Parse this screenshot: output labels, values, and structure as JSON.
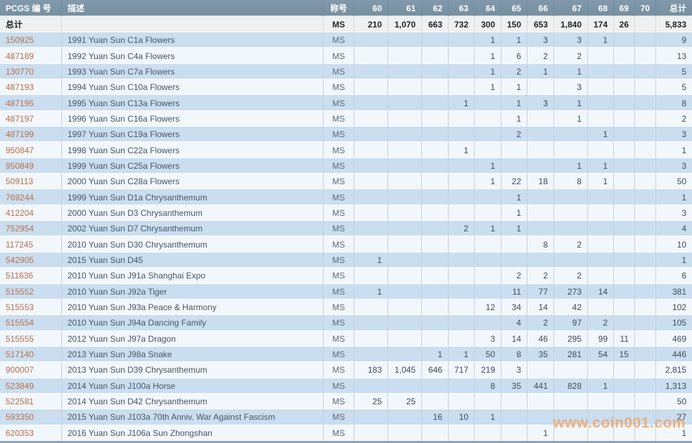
{
  "header": {
    "col_pcgs": "PCGS 编 号",
    "col_desc": "描述",
    "col_designation": "称号",
    "grades": [
      "60",
      "61",
      "62",
      "63",
      "64",
      "65",
      "66",
      "67",
      "68",
      "69",
      "70"
    ],
    "col_total": "总计"
  },
  "totals_row": {
    "label": "总计",
    "desc": "",
    "designation": "MS",
    "values": [
      "210",
      "1,070",
      "663",
      "732",
      "300",
      "150",
      "653",
      "1,840",
      "174",
      "26",
      ""
    ],
    "total": "5,833"
  },
  "rows": [
    {
      "pcgs": "150925",
      "desc": "1991 Yuan Sun C1a Flowers",
      "designation": "MS",
      "values": [
        "",
        "",
        "",
        "",
        "1",
        "1",
        "3",
        "3",
        "1",
        "",
        ""
      ],
      "total": "9"
    },
    {
      "pcgs": "487189",
      "desc": "1992 Yuan Sun C4a Flowers",
      "designation": "MS",
      "values": [
        "",
        "",
        "",
        "",
        "1",
        "6",
        "2",
        "2",
        "",
        "",
        ""
      ],
      "total": "13"
    },
    {
      "pcgs": "130770",
      "desc": "1993 Yuan Sun C7a Flowers",
      "designation": "MS",
      "values": [
        "",
        "",
        "",
        "",
        "1",
        "2",
        "1",
        "1",
        "",
        "",
        ""
      ],
      "total": "5"
    },
    {
      "pcgs": "487193",
      "desc": "1994 Yuan Sun C10a Flowers",
      "designation": "MS",
      "values": [
        "",
        "",
        "",
        "",
        "1",
        "1",
        "",
        "3",
        "",
        "",
        ""
      ],
      "total": "5"
    },
    {
      "pcgs": "487195",
      "desc": "1995 Yuan Sun C13a Flowers",
      "designation": "MS",
      "values": [
        "",
        "",
        "",
        "1",
        "",
        "1",
        "3",
        "1",
        "",
        "",
        ""
      ],
      "total": "8"
    },
    {
      "pcgs": "487197",
      "desc": "1996 Yuan Sun C16a Flowers",
      "designation": "MS",
      "values": [
        "",
        "",
        "",
        "",
        "",
        "1",
        "",
        "1",
        "",
        "",
        ""
      ],
      "total": "2"
    },
    {
      "pcgs": "487199",
      "desc": "1997 Yuan Sun C19a Flowers",
      "designation": "MS",
      "values": [
        "",
        "",
        "",
        "",
        "",
        "2",
        "",
        "",
        "1",
        "",
        ""
      ],
      "total": "3"
    },
    {
      "pcgs": "950847",
      "desc": "1998 Yuan Sun C22a Flowers",
      "designation": "MS",
      "values": [
        "",
        "",
        "",
        "1",
        "",
        "",
        "",
        "",
        "",
        "",
        ""
      ],
      "total": "1"
    },
    {
      "pcgs": "950849",
      "desc": "1999 Yuan Sun C25a Flowers",
      "designation": "MS",
      "values": [
        "",
        "",
        "",
        "",
        "1",
        "",
        "",
        "1",
        "1",
        "",
        ""
      ],
      "total": "3"
    },
    {
      "pcgs": "509113",
      "desc": "2000 Yuan Sun C28a Flowers",
      "designation": "MS",
      "values": [
        "",
        "",
        "",
        "",
        "1",
        "22",
        "18",
        "8",
        "1",
        "",
        ""
      ],
      "total": "50"
    },
    {
      "pcgs": "769244",
      "desc": "1999 Yuan Sun D1a Chrysanthemum",
      "designation": "MS",
      "values": [
        "",
        "",
        "",
        "",
        "",
        "1",
        "",
        "",
        "",
        "",
        ""
      ],
      "total": "1"
    },
    {
      "pcgs": "412204",
      "desc": "2000 Yuan Sun D3 Chrysanthemum",
      "designation": "MS",
      "values": [
        "",
        "",
        "",
        "",
        "",
        "1",
        "",
        "",
        "",
        "",
        ""
      ],
      "total": "3"
    },
    {
      "pcgs": "752954",
      "desc": "2002 Yuan Sun D7 Chrysanthemum",
      "designation": "MS",
      "values": [
        "",
        "",
        "",
        "2",
        "1",
        "1",
        "",
        "",
        "",
        "",
        ""
      ],
      "total": "4"
    },
    {
      "pcgs": "117245",
      "desc": "2010 Yuan Sun D30 Chrysanthemum",
      "designation": "MS",
      "values": [
        "",
        "",
        "",
        "",
        "",
        "",
        "8",
        "2",
        "",
        "",
        ""
      ],
      "total": "10"
    },
    {
      "pcgs": "542905",
      "desc": "2015 Yuan Sun D45",
      "designation": "MS",
      "values": [
        "1",
        "",
        "",
        "",
        "",
        "",
        "",
        "",
        "",
        "",
        ""
      ],
      "total": "1"
    },
    {
      "pcgs": "511636",
      "desc": "2010 Yuan Sun J91a Shanghai Expo",
      "designation": "MS",
      "values": [
        "",
        "",
        "",
        "",
        "",
        "2",
        "2",
        "2",
        "",
        "",
        ""
      ],
      "total": "6"
    },
    {
      "pcgs": "515552",
      "desc": "2010 Yuan Sun J92a Tiger",
      "designation": "MS",
      "values": [
        "1",
        "",
        "",
        "",
        "",
        "11",
        "77",
        "273",
        "14",
        "",
        ""
      ],
      "total": "381"
    },
    {
      "pcgs": "515553",
      "desc": "2010 Yuan Sun J93a Peace & Harmony",
      "designation": "MS",
      "values": [
        "",
        "",
        "",
        "",
        "12",
        "34",
        "14",
        "42",
        "",
        "",
        ""
      ],
      "total": "102"
    },
    {
      "pcgs": "515554",
      "desc": "2010 Yuan Sun J94a Dancing Family",
      "designation": "MS",
      "values": [
        "",
        "",
        "",
        "",
        "",
        "4",
        "2",
        "97",
        "2",
        "",
        ""
      ],
      "total": "105"
    },
    {
      "pcgs": "515555",
      "desc": "2012 Yuan Sun J97a Dragon",
      "designation": "MS",
      "values": [
        "",
        "",
        "",
        "",
        "3",
        "14",
        "46",
        "295",
        "99",
        "11",
        ""
      ],
      "total": "469"
    },
    {
      "pcgs": "517140",
      "desc": "2013 Yuan Sun J98a Snake",
      "designation": "MS",
      "values": [
        "",
        "",
        "1",
        "1",
        "50",
        "8",
        "35",
        "281",
        "54",
        "15",
        ""
      ],
      "total": "446"
    },
    {
      "pcgs": "900007",
      "desc": "2013 Yuan Sun D39 Chrysanthemum",
      "designation": "MS",
      "values": [
        "183",
        "1,045",
        "646",
        "717",
        "219",
        "3",
        "",
        "",
        "",
        "",
        ""
      ],
      "total": "2,815"
    },
    {
      "pcgs": "523849",
      "desc": "2014 Yuan Sun J100a Horse",
      "designation": "MS",
      "values": [
        "",
        "",
        "",
        "",
        "8",
        "35",
        "441",
        "828",
        "1",
        "",
        ""
      ],
      "total": "1,313"
    },
    {
      "pcgs": "522581",
      "desc": "2014 Yuan Sun D42 Chrysanthemum",
      "designation": "MS",
      "values": [
        "25",
        "25",
        "",
        "",
        "",
        "",
        "",
        "",
        "",
        "",
        ""
      ],
      "total": "50"
    },
    {
      "pcgs": "593350",
      "desc": "2015 Yuan Sun J103a 70th Anniv. War Against Fascism",
      "designation": "MS",
      "values": [
        "",
        "",
        "16",
        "10",
        "1",
        "",
        "",
        "",
        "",
        "",
        ""
      ],
      "total": "27"
    },
    {
      "pcgs": "620353",
      "desc": "2016 Yuan Sun J106a Sun Zhongshan",
      "designation": "MS",
      "values": [
        "",
        "",
        "",
        "",
        "",
        "",
        "1",
        "",
        "",
        "",
        ""
      ],
      "total": "1"
    }
  ],
  "watermark": "www.coin001.com"
}
